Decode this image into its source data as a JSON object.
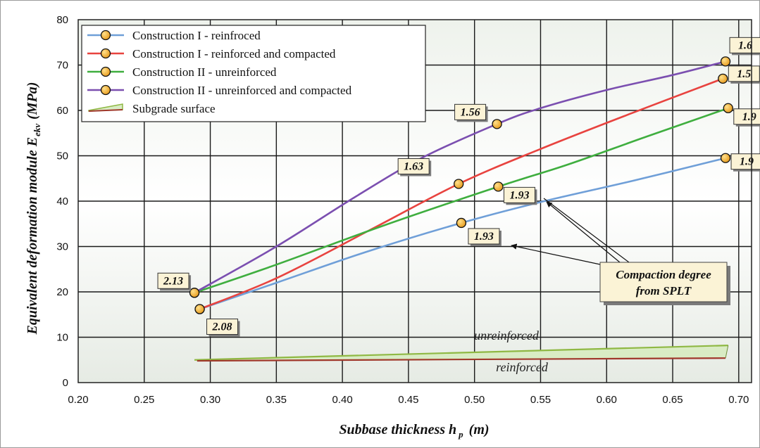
{
  "chart_data": {
    "type": "line",
    "xlabel": "Subbase thickness h",
    "xlabel_sub": "p",
    "xlabel_unit": "(m)",
    "ylabel": "Equivalent deformation module E",
    "ylabel_sub": "ekv",
    "ylabel_unit": "(MPa)",
    "xlim": [
      0.2,
      0.7
    ],
    "ylim": [
      0,
      80
    ],
    "xticks": [
      "0.20",
      "0.25",
      "0.30",
      "0.35",
      "0.40",
      "0.45",
      "0.50",
      "0.55",
      "0.60",
      "0.65",
      "0.70"
    ],
    "yticks": [
      "0",
      "10",
      "20",
      "30",
      "40",
      "50",
      "60",
      "70",
      "80"
    ],
    "grid": true,
    "legend_position": "top-left",
    "series": [
      {
        "name": "Construction I - reinfroced",
        "color": "#6f9fd8",
        "x": [
          0.292,
          0.49,
          0.69
        ],
        "y": [
          16.2,
          35.2,
          49.5
        ],
        "curve": [
          [
            0.292,
            16.2
          ],
          [
            0.35,
            22
          ],
          [
            0.42,
            29
          ],
          [
            0.49,
            35.2
          ],
          [
            0.55,
            39.8
          ],
          [
            0.62,
            44.5
          ],
          [
            0.69,
            49.5
          ]
        ]
      },
      {
        "name": "Construction I - reinforced and compacted",
        "color": "#e8433f",
        "x": [
          0.292,
          0.488,
          0.688
        ],
        "y": [
          16.2,
          43.8,
          67.0
        ],
        "curve": [
          [
            0.292,
            16.2
          ],
          [
            0.35,
            23
          ],
          [
            0.42,
            33.5
          ],
          [
            0.488,
            43.8
          ],
          [
            0.55,
            51.5
          ],
          [
            0.62,
            59.5
          ],
          [
            0.688,
            67.0
          ]
        ]
      },
      {
        "name": "Construction II - unreinforced",
        "color": "#3fae3f",
        "x": [
          0.288,
          0.518,
          0.692
        ],
        "y": [
          19.8,
          43.2,
          60.5
        ],
        "curve": [
          [
            0.288,
            19.8
          ],
          [
            0.35,
            26
          ],
          [
            0.43,
            34.5
          ],
          [
            0.518,
            43.2
          ],
          [
            0.57,
            48
          ],
          [
            0.63,
            54.2
          ],
          [
            0.692,
            60.5
          ]
        ]
      },
      {
        "name": "Construction II - unreinforced and compacted",
        "color": "#7b4fb0",
        "x": [
          0.288,
          0.517,
          0.69
        ],
        "y": [
          19.8,
          57.0,
          70.8
        ],
        "curve": [
          [
            0.288,
            19.8
          ],
          [
            0.35,
            30
          ],
          [
            0.41,
            41
          ],
          [
            0.46,
            49.5
          ],
          [
            0.517,
            57.0
          ],
          [
            0.55,
            60.5
          ],
          [
            0.6,
            64.5
          ],
          [
            0.65,
            67.8
          ],
          [
            0.69,
            70.8
          ]
        ]
      }
    ],
    "subgrade": {
      "name": "Subgrade surface",
      "upper": {
        "label": "unreinforced",
        "color": "#8fb843",
        "x": [
          0.288,
          0.692
        ],
        "y": [
          5.0,
          8.2
        ]
      },
      "lower": {
        "label": "reinforced",
        "color": "#a0382b",
        "x": [
          0.29,
          0.69
        ],
        "y": [
          4.8,
          5.4
        ]
      },
      "fill": "#d9ecc4"
    },
    "point_labels": [
      {
        "text": "2.13",
        "x": 0.288,
        "y": 19.8
      },
      {
        "text": "2.08",
        "x": 0.292,
        "y": 16.2
      },
      {
        "text": "1.56",
        "x": 0.517,
        "y": 57.0
      },
      {
        "text": "1.63",
        "x": 0.488,
        "y": 43.8
      },
      {
        "text": "1.93",
        "x": 0.518,
        "y": 43.2
      },
      {
        "text": "1.93",
        "x": 0.49,
        "y": 35.2
      },
      {
        "text": "1.6",
        "x": 0.69,
        "y": 70.8
      },
      {
        "text": "1.5",
        "x": 0.688,
        "y": 67.0
      },
      {
        "text": "1.9",
        "x": 0.692,
        "y": 60.5
      },
      {
        "text": "1.9",
        "x": 0.69,
        "y": 49.5
      }
    ],
    "annotation": {
      "lines": [
        "Compaction degree",
        "from SPLT"
      ]
    }
  }
}
